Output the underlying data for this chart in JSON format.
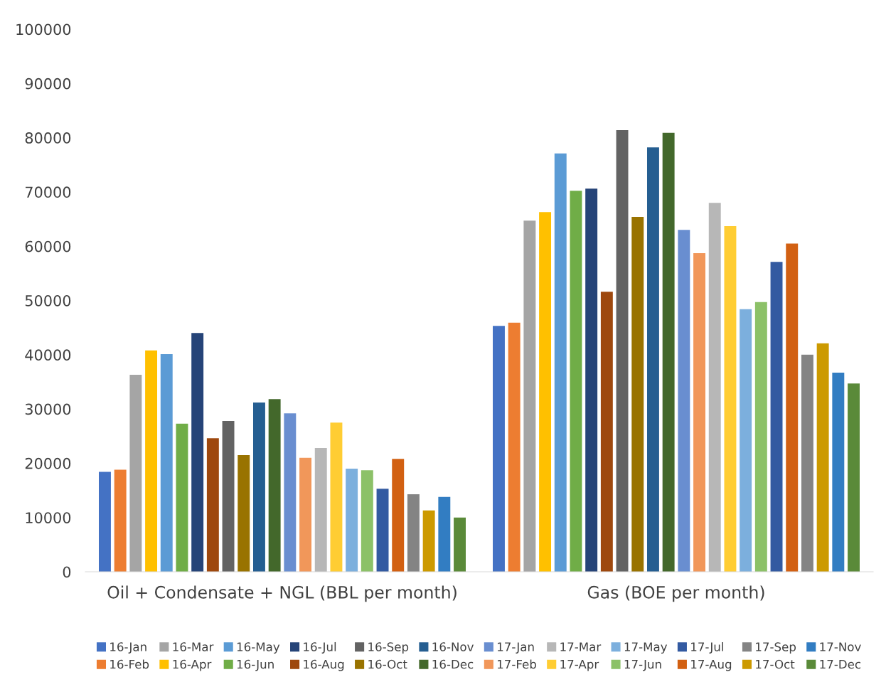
{
  "chart_data": {
    "type": "bar",
    "categories": [
      "Oil + Condensate + NGL (BBL per month)",
      "Gas (BOE per month)"
    ],
    "ylim": [
      0,
      100000
    ],
    "yticks": [
      0,
      10000,
      20000,
      30000,
      40000,
      50000,
      60000,
      70000,
      80000,
      90000,
      100000
    ],
    "grid": false,
    "legend": "bottom",
    "series": [
      {
        "name": "16-Jan",
        "color": "#4472c4",
        "values": [
          18400,
          45300
        ]
      },
      {
        "name": "16-Feb",
        "color": "#ed7d31",
        "values": [
          18800,
          45900
        ]
      },
      {
        "name": "16-Mar",
        "color": "#a5a5a5",
        "values": [
          36300,
          64700
        ]
      },
      {
        "name": "16-Apr",
        "color": "#ffc000",
        "values": [
          40800,
          66300
        ]
      },
      {
        "name": "16-May",
        "color": "#5b9bd5",
        "values": [
          40100,
          77100
        ]
      },
      {
        "name": "16-Jun",
        "color": "#70ad47",
        "values": [
          27300,
          70200
        ]
      },
      {
        "name": "16-Jul",
        "color": "#264478",
        "values": [
          44000,
          70600
        ]
      },
      {
        "name": "16-Aug",
        "color": "#9e480e",
        "values": [
          24600,
          51600
        ]
      },
      {
        "name": "16-Sep",
        "color": "#636363",
        "values": [
          27800,
          81400
        ]
      },
      {
        "name": "16-Oct",
        "color": "#997300",
        "values": [
          21500,
          65400
        ]
      },
      {
        "name": "16-Nov",
        "color": "#255e91",
        "values": [
          31200,
          78200
        ]
      },
      {
        "name": "16-Dec",
        "color": "#43682b",
        "values": [
          31800,
          80900
        ]
      },
      {
        "name": "17-Jan",
        "color": "#698ed0",
        "values": [
          29200,
          63000
        ]
      },
      {
        "name": "17-Feb",
        "color": "#f1975a",
        "values": [
          21000,
          58700
        ]
      },
      {
        "name": "17-Mar",
        "color": "#b7b7b7",
        "values": [
          22800,
          68000
        ]
      },
      {
        "name": "17-Apr",
        "color": "#ffcd33",
        "values": [
          27500,
          63700
        ]
      },
      {
        "name": "17-May",
        "color": "#7cafdd",
        "values": [
          19000,
          48400
        ]
      },
      {
        "name": "17-Jun",
        "color": "#8cc168",
        "values": [
          18700,
          49700
        ]
      },
      {
        "name": "17-Jul",
        "color": "#335aa1",
        "values": [
          15300,
          57100
        ]
      },
      {
        "name": "17-Aug",
        "color": "#d26012",
        "values": [
          20800,
          60500
        ]
      },
      {
        "name": "17-Sep",
        "color": "#848484",
        "values": [
          14300,
          40000
        ]
      },
      {
        "name": "17-Oct",
        "color": "#cc9a00",
        "values": [
          11300,
          42100
        ]
      },
      {
        "name": "17-Nov",
        "color": "#327dc2",
        "values": [
          13800,
          36700
        ]
      },
      {
        "name": "17-Dec",
        "color": "#5a8a39",
        "values": [
          10000,
          34700
        ]
      }
    ]
  }
}
